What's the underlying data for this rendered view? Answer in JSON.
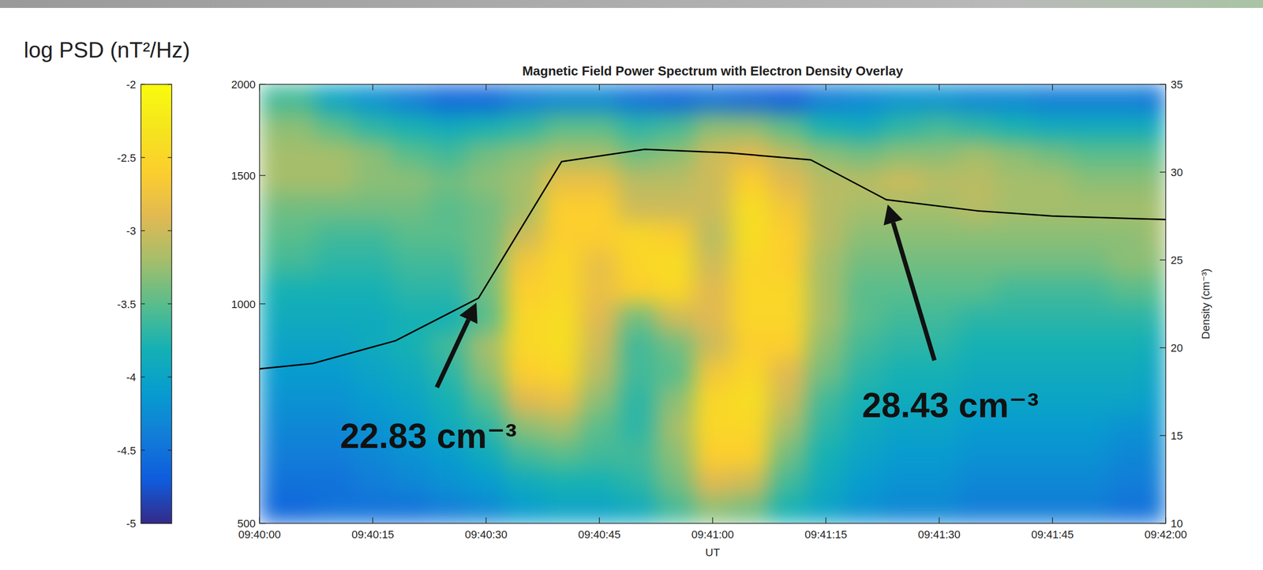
{
  "chart_data": {
    "type": "heatmap",
    "title": "Magnetic Field Power Spectrum with Electron Density Overlay",
    "xlabel": "UT",
    "y2label": "Density (cm⁻³)",
    "log": "y",
    "xlim": [
      "09:40:00",
      "09:42:00"
    ],
    "xticks": [
      "09:40:00",
      "09:40:15",
      "09:40:30",
      "09:40:45",
      "09:41:00",
      "09:41:15",
      "09:41:30",
      "09:41:45",
      "09:42:00"
    ],
    "ylim": [
      500,
      2000
    ],
    "yticks": [
      500,
      1000,
      1500,
      2000
    ],
    "y2lim": [
      10,
      35
    ],
    "y2ticks": [
      10,
      15,
      20,
      25,
      30,
      35
    ],
    "colorbar": {
      "label": "log PSD (nT²/Hz)",
      "lim": [
        -5,
        -2
      ],
      "ticks": [
        -5,
        -4.5,
        -4,
        -3.5,
        -3,
        -2.5,
        -2
      ]
    },
    "heatmap": {
      "x": [
        "09:40:00",
        "09:40:05",
        "09:40:10",
        "09:40:15",
        "09:40:20",
        "09:40:25",
        "09:40:30",
        "09:40:35",
        "09:40:40",
        "09:40:45",
        "09:40:50",
        "09:40:55",
        "09:41:00",
        "09:41:05",
        "09:41:10",
        "09:41:15",
        "09:41:20",
        "09:41:25",
        "09:41:30",
        "09:41:35",
        "09:41:40",
        "09:41:45",
        "09:41:50",
        "09:41:55",
        "09:42:00"
      ],
      "y": [
        522,
        569,
        621,
        677,
        738,
        805,
        878,
        958,
        1044,
        1139,
        1242,
        1354,
        1477,
        1611,
        1756,
        1915
      ],
      "z": [
        [
          -4.6,
          -4.6,
          -4.5,
          -4.5,
          -4.5,
          -4.4,
          -4.3,
          -4.1,
          -4.0,
          -4.0,
          -3.9,
          -3.6,
          -3.3,
          -3.4,
          -3.8,
          -4.0,
          -4.2,
          -4.3,
          -4.3,
          -4.4,
          -4.4,
          -4.4,
          -4.4,
          -4.5,
          -4.5
        ],
        [
          -4.5,
          -4.5,
          -4.5,
          -4.4,
          -4.3,
          -4.2,
          -4.1,
          -3.9,
          -3.8,
          -3.8,
          -3.7,
          -3.4,
          -2.9,
          -3.0,
          -3.6,
          -3.9,
          -4.1,
          -4.2,
          -4.2,
          -4.3,
          -4.3,
          -4.3,
          -4.3,
          -4.4,
          -4.4
        ],
        [
          -4.4,
          -4.4,
          -4.4,
          -4.3,
          -4.2,
          -4.1,
          -3.9,
          -3.6,
          -3.5,
          -3.6,
          -3.6,
          -3.3,
          -2.6,
          -2.6,
          -3.4,
          -3.8,
          -4.0,
          -4.1,
          -4.1,
          -4.2,
          -4.2,
          -4.2,
          -4.2,
          -4.3,
          -4.3
        ],
        [
          -4.3,
          -4.3,
          -4.3,
          -4.2,
          -4.1,
          -3.9,
          -3.7,
          -3.3,
          -3.2,
          -3.5,
          -3.7,
          -3.2,
          -2.5,
          -2.5,
          -3.2,
          -3.7,
          -3.9,
          -4.0,
          -4.0,
          -4.1,
          -4.1,
          -4.1,
          -4.1,
          -4.2,
          -4.2
        ],
        [
          -4.2,
          -4.2,
          -4.2,
          -4.1,
          -4.0,
          -3.8,
          -3.5,
          -2.9,
          -2.8,
          -3.3,
          -3.7,
          -3.3,
          -2.5,
          -2.4,
          -3.0,
          -3.6,
          -3.8,
          -3.9,
          -3.9,
          -4.0,
          -4.0,
          -4.0,
          -4.0,
          -4.0,
          -4.1
        ],
        [
          -4.1,
          -4.1,
          -4.1,
          -4.0,
          -3.9,
          -3.7,
          -3.3,
          -2.6,
          -2.5,
          -3.1,
          -3.6,
          -3.5,
          -2.7,
          -2.5,
          -2.9,
          -3.4,
          -3.7,
          -3.8,
          -3.8,
          -3.9,
          -3.9,
          -3.9,
          -3.9,
          -3.9,
          -4.0
        ],
        [
          -4.0,
          -4.0,
          -4.0,
          -3.9,
          -3.8,
          -3.6,
          -3.2,
          -2.5,
          -2.4,
          -3.0,
          -3.6,
          -3.4,
          -3.0,
          -2.6,
          -2.6,
          -3.3,
          -3.6,
          -3.7,
          -3.7,
          -3.8,
          -3.8,
          -3.8,
          -3.8,
          -3.8,
          -3.9
        ],
        [
          -3.9,
          -3.9,
          -3.9,
          -3.9,
          -3.8,
          -3.8,
          -3.5,
          -2.5,
          -2.4,
          -2.9,
          -3.4,
          -3.0,
          -2.9,
          -2.5,
          -2.5,
          -3.2,
          -3.5,
          -3.6,
          -3.6,
          -3.7,
          -3.7,
          -3.7,
          -3.7,
          -3.7,
          -3.7
        ],
        [
          -3.8,
          -3.8,
          -3.8,
          -3.8,
          -3.7,
          -3.7,
          -3.4,
          -2.6,
          -2.5,
          -2.8,
          -2.6,
          -2.5,
          -2.9,
          -2.5,
          -2.5,
          -3.2,
          -3.5,
          -3.5,
          -3.5,
          -3.5,
          -3.6,
          -3.6,
          -3.6,
          -3.5,
          -3.5
        ],
        [
          -3.6,
          -3.6,
          -3.7,
          -3.7,
          -3.6,
          -3.6,
          -3.4,
          -2.7,
          -2.5,
          -2.8,
          -2.5,
          -2.4,
          -3.0,
          -2.5,
          -2.6,
          -3.2,
          -3.4,
          -3.4,
          -3.4,
          -3.4,
          -3.4,
          -3.4,
          -3.4,
          -3.3,
          -3.3
        ],
        [
          -3.5,
          -3.5,
          -3.6,
          -3.6,
          -3.5,
          -3.5,
          -3.4,
          -3.0,
          -2.6,
          -2.6,
          -2.5,
          -2.6,
          -3.1,
          -2.4,
          -2.6,
          -3.1,
          -3.3,
          -3.3,
          -3.3,
          -3.3,
          -3.3,
          -3.3,
          -3.3,
          -3.3,
          -3.2
        ],
        [
          -3.4,
          -3.4,
          -3.4,
          -3.4,
          -3.4,
          -3.5,
          -3.4,
          -3.2,
          -2.6,
          -2.6,
          -3.0,
          -3.0,
          -3.0,
          -2.4,
          -2.7,
          -3.1,
          -3.2,
          -3.2,
          -3.2,
          -3.1,
          -3.2,
          -3.2,
          -3.2,
          -3.2,
          -3.2
        ],
        [
          -3.2,
          -3.2,
          -3.2,
          -3.3,
          -3.3,
          -3.4,
          -3.3,
          -3.2,
          -2.8,
          -2.8,
          -3.1,
          -3.1,
          -3.0,
          -2.6,
          -2.9,
          -3.1,
          -3.1,
          -3.0,
          -3.1,
          -3.1,
          -3.2,
          -3.2,
          -3.3,
          -3.3,
          -3.3
        ],
        [
          -3.2,
          -3.2,
          -3.2,
          -3.3,
          -3.5,
          -3.6,
          -3.4,
          -3.3,
          -3.2,
          -3.2,
          -3.4,
          -3.3,
          -3.0,
          -2.9,
          -3.1,
          -3.3,
          -3.4,
          -3.3,
          -3.3,
          -3.2,
          -3.3,
          -3.4,
          -3.5,
          -3.5,
          -3.5
        ],
        [
          -3.3,
          -3.3,
          -3.5,
          -3.7,
          -3.8,
          -3.9,
          -3.8,
          -3.7,
          -3.5,
          -3.5,
          -3.7,
          -3.6,
          -3.3,
          -3.3,
          -3.5,
          -3.8,
          -3.9,
          -3.7,
          -3.6,
          -3.7,
          -3.8,
          -3.9,
          -3.9,
          -3.9,
          -3.9
        ],
        [
          -3.6,
          -3.6,
          -4.0,
          -4.2,
          -4.4,
          -4.6,
          -4.6,
          -4.4,
          -4.3,
          -4.3,
          -4.5,
          -4.6,
          -4.5,
          -4.6,
          -4.7,
          -4.4,
          -4.3,
          -4.2,
          -4.2,
          -4.3,
          -4.3,
          -4.4,
          -4.4,
          -4.4,
          -4.5
        ]
      ]
    },
    "series": [
      {
        "type": "line",
        "axis": "y2",
        "color": "#000000",
        "x": [
          "09:40:00",
          "09:40:07",
          "09:40:18",
          "09:40:29",
          "09:40:40",
          "09:40:51",
          "09:41:02",
          "09:41:13",
          "09:41:23",
          "09:41:35",
          "09:41:45",
          "09:42:00"
        ],
        "values": [
          18.8,
          19.1,
          20.4,
          22.83,
          30.6,
          31.3,
          31.1,
          30.7,
          28.43,
          27.8,
          27.5,
          27.3
        ]
      }
    ],
    "annotations": [
      {
        "text": "22.83 cm⁻³",
        "x": "09:40:29",
        "y": 22.83
      },
      {
        "text": "28.43 cm⁻³",
        "x": "09:41:23",
        "y": 28.43
      }
    ]
  }
}
